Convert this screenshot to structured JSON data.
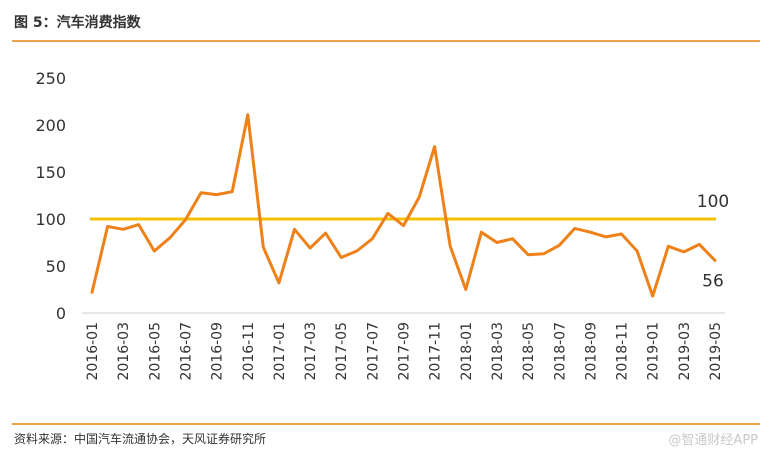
{
  "header": {
    "title": "图 5：汽车消费指数"
  },
  "footer": {
    "source": "资料来源：中国汽车流通协会，天风证券研究所",
    "watermark": "@智通财经APP"
  },
  "colors": {
    "accent_rule": "#f0a24b",
    "series_line": "#ee8119",
    "reference_line": "#f2c200"
  },
  "chart_data": {
    "type": "line",
    "title": "",
    "xlabel": "",
    "ylabel": "",
    "ylim": [
      0,
      250
    ],
    "yticks": [
      0,
      50,
      100,
      150,
      200,
      250
    ],
    "grid": false,
    "x": [
      "2016-01",
      "2016-02",
      "2016-03",
      "2016-04",
      "2016-05",
      "2016-06",
      "2016-07",
      "2016-08",
      "2016-09",
      "2016-10",
      "2016-11",
      "2016-12",
      "2017-01",
      "2017-02",
      "2017-03",
      "2017-04",
      "2017-05",
      "2017-06",
      "2017-07",
      "2017-08",
      "2017-09",
      "2017-10",
      "2017-11",
      "2017-12",
      "2018-01",
      "2018-02",
      "2018-03",
      "2018-04",
      "2018-05",
      "2018-06",
      "2018-07",
      "2018-08",
      "2018-09",
      "2018-10",
      "2018-11",
      "2018-12",
      "2019-01",
      "2019-02",
      "2019-03",
      "2019-04",
      "2019-05"
    ],
    "xtick_labels": [
      "2016-01",
      "2016-03",
      "2016-05",
      "2016-07",
      "2016-09",
      "2016-11",
      "2017-01",
      "2017-03",
      "2017-05",
      "2017-07",
      "2017-09",
      "2017-11",
      "2018-01",
      "2018-03",
      "2018-05",
      "2018-07",
      "2018-09",
      "2018-11",
      "2019-01",
      "2019-03",
      "2019-05"
    ],
    "series": [
      {
        "values": [
          22,
          92,
          89,
          94,
          66,
          80,
          99,
          128,
          126,
          129,
          211,
          70,
          32,
          89,
          69,
          85,
          59,
          66,
          79,
          106,
          93,
          123,
          177,
          71,
          25,
          86,
          75,
          79,
          62,
          63,
          72,
          90,
          86,
          81,
          84,
          66,
          18,
          71,
          65,
          73,
          56
        ]
      }
    ],
    "reference_line": {
      "value": 100,
      "label": "100"
    },
    "annotations": [
      {
        "text": "56"
      }
    ]
  }
}
